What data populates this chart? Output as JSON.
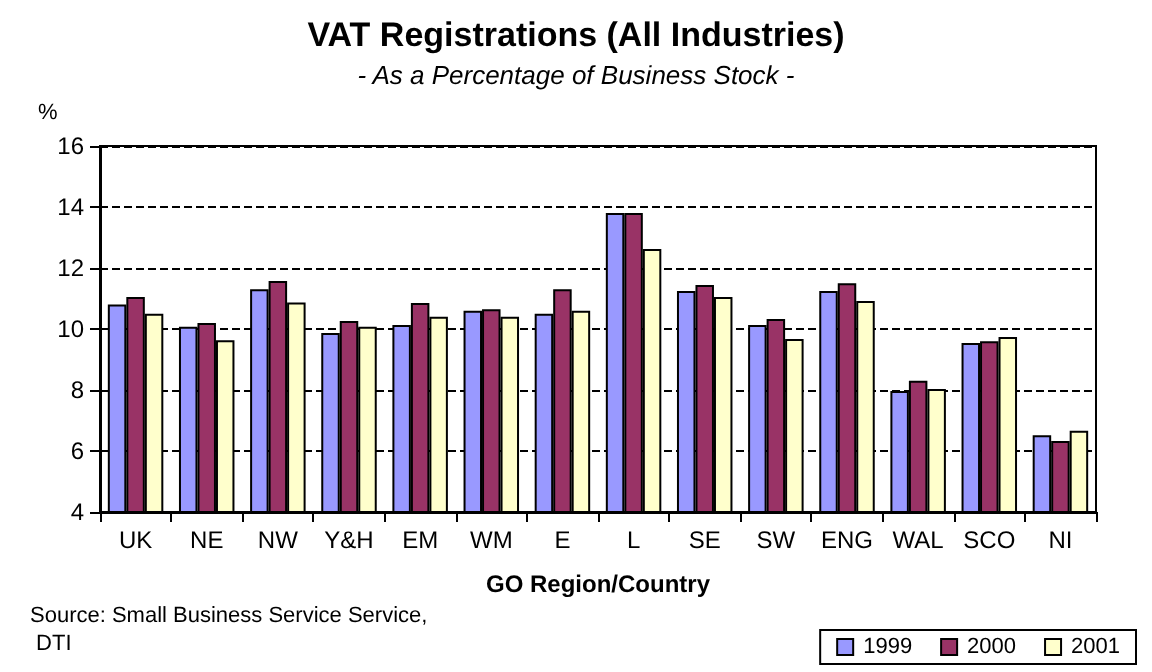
{
  "chart_data": {
    "type": "bar",
    "title": "VAT Registrations (All Industries)",
    "subtitle": "- As a Percentage of Business Stock -",
    "xlabel": "GO Region/Country",
    "ylabel": "%",
    "categories": [
      "UK",
      "NE",
      "NW",
      "Y&H",
      "EM",
      "WM",
      "E",
      "L",
      "SE",
      "SW",
      "ENG",
      "WAL",
      "SCO",
      "NI"
    ],
    "series": [
      {
        "name": "1999",
        "color": "#9999ff",
        "values": [
          10.8,
          10.07,
          11.3,
          9.87,
          10.13,
          10.6,
          10.5,
          13.8,
          11.25,
          10.13,
          11.25,
          7.97,
          9.54,
          6.52
        ]
      },
      {
        "name": "2000",
        "color": "#993366",
        "values": [
          11.05,
          10.2,
          11.57,
          10.26,
          10.85,
          10.65,
          11.3,
          13.8,
          11.44,
          10.33,
          11.5,
          8.3,
          9.6,
          6.33
        ]
      },
      {
        "name": "2001",
        "color": "#ffffcc",
        "values": [
          10.5,
          9.63,
          10.87,
          10.07,
          10.4,
          10.4,
          10.6,
          12.62,
          11.05,
          9.67,
          10.92,
          8.03,
          9.74,
          6.66
        ]
      }
    ],
    "ylim": [
      4,
      16
    ],
    "yticks": [
      4,
      6,
      8,
      10,
      12,
      14,
      16
    ],
    "grid": "y",
    "legend": "bottom right",
    "annotations": [
      "Source: Small Business Service Service, DTI"
    ]
  }
}
